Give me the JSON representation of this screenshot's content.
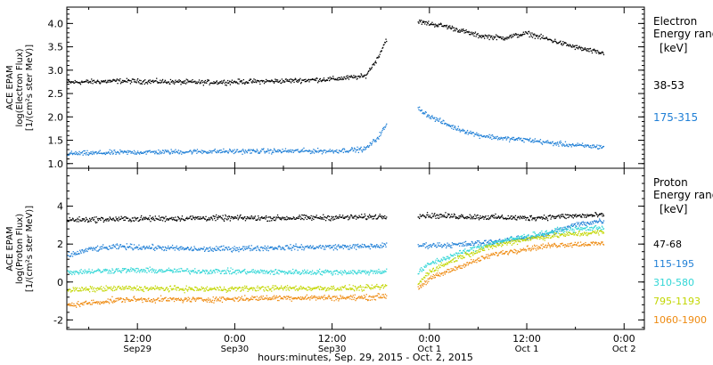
{
  "footer": {
    "xlabel": "hours:minutes, Sep. 29, 2015 - Oct. 2, 2015"
  },
  "x_ticks": [
    {
      "l1": "12:00",
      "l2": "Sep29",
      "t": 12
    },
    {
      "l1": "0:00",
      "l2": "Sep30",
      "t": 24
    },
    {
      "l1": "12:00",
      "l2": "Sep30",
      "t": 36
    },
    {
      "l1": "0:00",
      "l2": "Oct 1",
      "t": 48
    },
    {
      "l1": "12:00",
      "l2": "Oct 1",
      "t": 60
    },
    {
      "l1": "0:00",
      "l2": "Oct 2",
      "t": 72
    }
  ],
  "chart_data": [
    {
      "type": "scatter",
      "ylabel": [
        "ACE EPAM",
        "log(Electron Flux)",
        "[1/(cm²s ster MeV)]"
      ],
      "ylim": [
        0.9,
        4.35
      ],
      "yticks": [
        "1.0",
        "1.5",
        "2.0",
        "2.5",
        "3.0",
        "3.5",
        "4.0"
      ],
      "legend_title": [
        "Electron",
        "Energy ranges",
        "[keV]"
      ],
      "x_unit": "hours since Sep 29 2015 00:00 UT",
      "xlim": [
        3.3,
        74.5
      ],
      "gap": [
        42.7,
        46.5
      ],
      "series": [
        {
          "name": "38-53",
          "color": "#000000",
          "x": [
            3.3,
            10,
            20,
            30,
            36,
            40,
            41.5,
            42.7,
            46.5,
            50,
            54,
            57,
            60,
            63,
            66,
            69
          ],
          "y": [
            2.75,
            2.78,
            2.75,
            2.78,
            2.82,
            2.88,
            3.25,
            3.7,
            4.05,
            3.95,
            3.75,
            3.7,
            3.8,
            3.65,
            3.5,
            3.38
          ]
        },
        {
          "name": "175-315",
          "color": "#1f7fd6",
          "x": [
            3.3,
            10,
            20,
            30,
            36,
            40,
            41.5,
            42.7,
            46.5,
            48,
            51,
            54,
            57,
            60,
            63,
            66,
            69
          ],
          "y": [
            1.22,
            1.25,
            1.27,
            1.28,
            1.28,
            1.32,
            1.55,
            1.85,
            2.2,
            2.02,
            1.78,
            1.62,
            1.55,
            1.52,
            1.45,
            1.4,
            1.37
          ]
        }
      ]
    },
    {
      "type": "scatter",
      "ylabel": [
        "ACE EPAM",
        "log(Proton Flux)",
        "[1/(cm²s ster MeV)]"
      ],
      "ylim": [
        -2.5,
        6.0
      ],
      "yticks": [
        "-2",
        "0",
        "2",
        "4"
      ],
      "legend_title": [
        "Proton",
        "Energy ranges",
        "[keV]"
      ],
      "x_unit": "hours since Sep 29 2015 00:00 UT",
      "xlim": [
        3.3,
        74.5
      ],
      "gap": [
        42.7,
        46.5
      ],
      "series": [
        {
          "name": "47-68",
          "color": "#000000",
          "x": [
            3.3,
            10,
            20,
            30,
            40,
            42.7,
            46.5,
            55,
            60,
            65,
            69
          ],
          "y": [
            3.3,
            3.35,
            3.4,
            3.4,
            3.45,
            3.5,
            3.55,
            3.45,
            3.4,
            3.5,
            3.55
          ]
        },
        {
          "name": "115-195",
          "color": "#1f7fd6",
          "x": [
            3.3,
            6,
            10,
            20,
            30,
            40,
            42.7,
            46.5,
            52,
            58,
            62,
            66,
            69
          ],
          "y": [
            1.4,
            1.75,
            1.9,
            1.75,
            1.85,
            1.9,
            1.95,
            1.95,
            2.0,
            2.25,
            2.5,
            3.05,
            3.25
          ]
        },
        {
          "name": "310-580",
          "color": "#30d6d6",
          "x": [
            3.3,
            10,
            20,
            30,
            40,
            42.7,
            46.5,
            48,
            52,
            56,
            60,
            64,
            69
          ],
          "y": [
            0.55,
            0.65,
            0.6,
            0.55,
            0.55,
            0.6,
            0.5,
            1.0,
            1.6,
            2.1,
            2.45,
            2.75,
            2.9
          ]
        },
        {
          "name": "795-1193",
          "color": "#c2d600",
          "x": [
            3.3,
            10,
            20,
            30,
            40,
            42.7,
            46.5,
            48,
            52,
            56,
            60,
            64,
            69
          ],
          "y": [
            -0.4,
            -0.3,
            -0.35,
            -0.3,
            -0.3,
            -0.2,
            -0.1,
            0.6,
            1.4,
            1.95,
            2.3,
            2.5,
            2.65
          ]
        },
        {
          "name": "1060-1900",
          "color": "#ee8a10",
          "x": [
            3.3,
            10,
            20,
            30,
            40,
            42.7,
            46.5,
            48,
            52,
            56,
            60,
            64,
            69
          ],
          "y": [
            -1.2,
            -0.9,
            -0.9,
            -0.8,
            -0.8,
            -0.7,
            -0.3,
            0.2,
            0.9,
            1.5,
            1.8,
            2.0,
            2.05
          ]
        }
      ]
    }
  ]
}
